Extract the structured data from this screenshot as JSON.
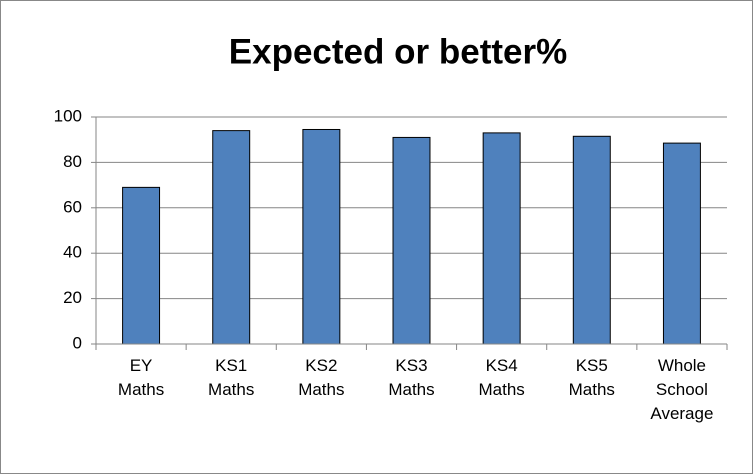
{
  "chart_data": {
    "type": "bar",
    "title": "Expected or better%",
    "categories": [
      "EY Maths",
      "KS1 Maths",
      "KS2 Maths",
      "KS3 Maths",
      "KS4 Maths",
      "KS5 Maths",
      "Whole School Average"
    ],
    "values": [
      69,
      94,
      94.5,
      91,
      93,
      91.5,
      88.5
    ],
    "color": "#4f81bd",
    "ylim": [
      0,
      100
    ],
    "yticks": [
      0,
      20,
      40,
      60,
      80,
      100
    ],
    "grid": true
  }
}
